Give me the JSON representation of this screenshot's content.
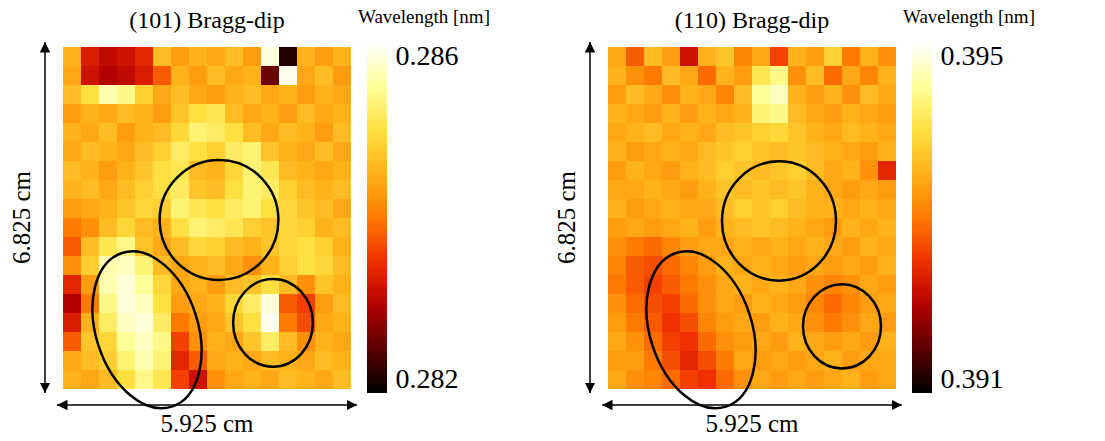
{
  "chart_data": [
    {
      "type": "heatmap",
      "title": "(101) Bragg-dip",
      "colorbar_label": "Wavelength [nm]",
      "x_label": "5.925 cm",
      "y_label": "6.825 cm",
      "tick_labels": false,
      "colorbar_lim": [
        0.282,
        0.286
      ],
      "colorbar_ticks": [
        0.282,
        0.286
      ],
      "cells": [
        [
          0.2845,
          0.2833,
          0.2831,
          0.2832,
          0.2834,
          0.2846,
          0.2843,
          0.2845,
          0.2844,
          0.2846,
          0.2843,
          0.2858,
          0.2822,
          0.2845,
          0.2843,
          0.2845
        ],
        [
          0.2844,
          0.2832,
          0.283,
          0.2831,
          0.2833,
          0.2838,
          0.2845,
          0.2843,
          0.2846,
          0.2844,
          0.2845,
          0.2826,
          0.2859,
          0.2844,
          0.2846,
          0.2843
        ],
        [
          0.2846,
          0.285,
          0.2856,
          0.2854,
          0.2848,
          0.2844,
          0.2846,
          0.2844,
          0.2843,
          0.2845,
          0.2846,
          0.2844,
          0.2845,
          0.2843,
          0.2845,
          0.2844
        ],
        [
          0.2843,
          0.2845,
          0.2844,
          0.2846,
          0.2845,
          0.2843,
          0.2847,
          0.285,
          0.2851,
          0.2846,
          0.2844,
          0.2845,
          0.2843,
          0.2846,
          0.2844,
          0.2845
        ],
        [
          0.2845,
          0.2844,
          0.2846,
          0.2843,
          0.2845,
          0.2846,
          0.2849,
          0.2853,
          0.2852,
          0.285,
          0.2846,
          0.2844,
          0.2846,
          0.2845,
          0.2843,
          0.2846
        ],
        [
          0.2844,
          0.2846,
          0.2845,
          0.2844,
          0.2846,
          0.2848,
          0.2852,
          0.285,
          0.2848,
          0.2852,
          0.2853,
          0.2847,
          0.2845,
          0.2844,
          0.2846,
          0.2844
        ],
        [
          0.2846,
          0.2845,
          0.2843,
          0.2845,
          0.2847,
          0.285,
          0.2851,
          0.2846,
          0.2845,
          0.2849,
          0.2853,
          0.2851,
          0.2846,
          0.2845,
          0.2844,
          0.2845
        ],
        [
          0.2845,
          0.2846,
          0.2844,
          0.2846,
          0.2848,
          0.285,
          0.2852,
          0.2847,
          0.2846,
          0.285,
          0.2853,
          0.2852,
          0.2848,
          0.2846,
          0.2845,
          0.2846
        ],
        [
          0.2843,
          0.2844,
          0.2845,
          0.2847,
          0.2849,
          0.2848,
          0.2853,
          0.2851,
          0.285,
          0.2852,
          0.2853,
          0.285,
          0.2849,
          0.2847,
          0.2846,
          0.2844
        ],
        [
          0.284,
          0.2842,
          0.2846,
          0.2849,
          0.2846,
          0.2845,
          0.285,
          0.2853,
          0.2852,
          0.2851,
          0.2848,
          0.2847,
          0.2849,
          0.2848,
          0.2845,
          0.2846
        ],
        [
          0.2838,
          0.2846,
          0.2851,
          0.2854,
          0.2847,
          0.2844,
          0.2846,
          0.2849,
          0.2848,
          0.2846,
          0.2845,
          0.2847,
          0.2849,
          0.285,
          0.2848,
          0.2845
        ],
        [
          0.2842,
          0.2848,
          0.2856,
          0.2857,
          0.2853,
          0.2846,
          0.2844,
          0.2845,
          0.2846,
          0.2844,
          0.2842,
          0.2845,
          0.2848,
          0.285,
          0.2849,
          0.2846
        ],
        [
          0.2834,
          0.2843,
          0.2856,
          0.2858,
          0.2855,
          0.2849,
          0.2844,
          0.2845,
          0.2843,
          0.2846,
          0.2847,
          0.285,
          0.2846,
          0.2842,
          0.2847,
          0.2845
        ],
        [
          0.283,
          0.284,
          0.2854,
          0.2858,
          0.2857,
          0.285,
          0.2843,
          0.2844,
          0.2845,
          0.2849,
          0.2852,
          0.2858,
          0.2838,
          0.2836,
          0.2843,
          0.2846
        ],
        [
          0.2833,
          0.2845,
          0.2852,
          0.2857,
          0.2858,
          0.2852,
          0.284,
          0.2843,
          0.2844,
          0.2847,
          0.285,
          0.2859,
          0.284,
          0.2837,
          0.2844,
          0.2845
        ],
        [
          0.2838,
          0.2847,
          0.2849,
          0.2855,
          0.2857,
          0.2854,
          0.2836,
          0.2842,
          0.2845,
          0.2844,
          0.2847,
          0.2852,
          0.2846,
          0.2842,
          0.2845,
          0.2844
        ],
        [
          0.2844,
          0.2846,
          0.2848,
          0.2853,
          0.2856,
          0.2853,
          0.2834,
          0.2838,
          0.2844,
          0.2845,
          0.2844,
          0.2846,
          0.2845,
          0.2844,
          0.2846,
          0.2845
        ],
        [
          0.2845,
          0.2844,
          0.2846,
          0.285,
          0.2854,
          0.2851,
          0.2836,
          0.2832,
          0.2842,
          0.2844,
          0.2845,
          0.2844,
          0.2846,
          0.2845,
          0.2844,
          0.2846
        ]
      ]
    },
    {
      "type": "heatmap",
      "title": "(110) Bragg-dip",
      "colorbar_label": "Wavelength [nm]",
      "x_label": "5.925 cm",
      "y_label": "6.825 cm",
      "tick_labels": false,
      "colorbar_lim": [
        0.391,
        0.395
      ],
      "colorbar_ticks": [
        0.391,
        0.395
      ],
      "cells": [
        [
          0.3934,
          0.3928,
          0.3936,
          0.3933,
          0.3922,
          0.3935,
          0.3937,
          0.3931,
          0.3934,
          0.3926,
          0.3935,
          0.3933,
          0.3938,
          0.393,
          0.3935,
          0.3932
        ],
        [
          0.3935,
          0.3932,
          0.393,
          0.3936,
          0.3934,
          0.3929,
          0.3935,
          0.3933,
          0.3941,
          0.3944,
          0.3932,
          0.3936,
          0.3929,
          0.3934,
          0.3931,
          0.3935
        ],
        [
          0.3933,
          0.3936,
          0.3934,
          0.3932,
          0.3935,
          0.3934,
          0.3931,
          0.3936,
          0.3945,
          0.3947,
          0.3935,
          0.3933,
          0.3935,
          0.3932,
          0.3936,
          0.3934
        ],
        [
          0.3935,
          0.3934,
          0.3933,
          0.3935,
          0.3933,
          0.3935,
          0.3934,
          0.3935,
          0.3943,
          0.3944,
          0.3936,
          0.3934,
          0.3933,
          0.3935,
          0.3934,
          0.3933
        ],
        [
          0.3934,
          0.3935,
          0.3936,
          0.3934,
          0.3935,
          0.3934,
          0.3936,
          0.3937,
          0.3938,
          0.3939,
          0.3937,
          0.3935,
          0.3934,
          0.3936,
          0.3935,
          0.3934
        ],
        [
          0.3935,
          0.3933,
          0.3934,
          0.3935,
          0.3934,
          0.3936,
          0.3937,
          0.3938,
          0.3937,
          0.3936,
          0.3937,
          0.3936,
          0.3935,
          0.3934,
          0.3933,
          0.3935
        ],
        [
          0.3933,
          0.3935,
          0.3934,
          0.3933,
          0.3935,
          0.3936,
          0.3938,
          0.3937,
          0.3936,
          0.3937,
          0.3938,
          0.3936,
          0.3934,
          0.3935,
          0.3932,
          0.3924
        ],
        [
          0.3934,
          0.3934,
          0.3935,
          0.3934,
          0.3933,
          0.3935,
          0.3937,
          0.3936,
          0.3937,
          0.3936,
          0.3937,
          0.3935,
          0.3934,
          0.3933,
          0.3934,
          0.3933
        ],
        [
          0.3935,
          0.3933,
          0.3934,
          0.3935,
          0.3934,
          0.3934,
          0.3936,
          0.3938,
          0.3937,
          0.3938,
          0.3936,
          0.3935,
          0.3935,
          0.3934,
          0.3935,
          0.3934
        ],
        [
          0.3933,
          0.3934,
          0.3933,
          0.3934,
          0.3935,
          0.3933,
          0.3935,
          0.3936,
          0.3937,
          0.3936,
          0.3935,
          0.3934,
          0.3933,
          0.3935,
          0.3934,
          0.3935
        ],
        [
          0.3932,
          0.393,
          0.3929,
          0.3931,
          0.3933,
          0.3934,
          0.3934,
          0.3935,
          0.3934,
          0.3935,
          0.3934,
          0.3935,
          0.3934,
          0.3933,
          0.3935,
          0.3934
        ],
        [
          0.3931,
          0.3928,
          0.3927,
          0.3929,
          0.3931,
          0.3933,
          0.3935,
          0.3934,
          0.3935,
          0.3934,
          0.3933,
          0.3934,
          0.3933,
          0.3934,
          0.3933,
          0.3935
        ],
        [
          0.393,
          0.3928,
          0.3926,
          0.3928,
          0.393,
          0.3932,
          0.3934,
          0.3935,
          0.3934,
          0.3935,
          0.3934,
          0.3932,
          0.3931,
          0.3932,
          0.3934,
          0.3933
        ],
        [
          0.3932,
          0.3929,
          0.3927,
          0.3926,
          0.3929,
          0.3932,
          0.3934,
          0.3933,
          0.3935,
          0.3934,
          0.3933,
          0.3931,
          0.3929,
          0.3931,
          0.3933,
          0.3934
        ],
        [
          0.3933,
          0.393,
          0.3928,
          0.3925,
          0.3927,
          0.3931,
          0.3933,
          0.3934,
          0.3933,
          0.3935,
          0.3934,
          0.3932,
          0.393,
          0.3932,
          0.3934,
          0.3933
        ],
        [
          0.3934,
          0.3932,
          0.3929,
          0.3926,
          0.3925,
          0.3929,
          0.3932,
          0.3933,
          0.3934,
          0.3933,
          0.3935,
          0.3934,
          0.3933,
          0.3934,
          0.3933,
          0.3935
        ],
        [
          0.3933,
          0.3933,
          0.393,
          0.3927,
          0.3924,
          0.3927,
          0.393,
          0.3934,
          0.3933,
          0.3934,
          0.3933,
          0.3934,
          0.3935,
          0.3933,
          0.3934,
          0.3934
        ],
        [
          0.3934,
          0.3932,
          0.3931,
          0.3929,
          0.3926,
          0.3925,
          0.3929,
          0.3932,
          0.3934,
          0.3933,
          0.3934,
          0.3933,
          0.3934,
          0.3935,
          0.3933,
          0.3934
        ]
      ]
    }
  ]
}
